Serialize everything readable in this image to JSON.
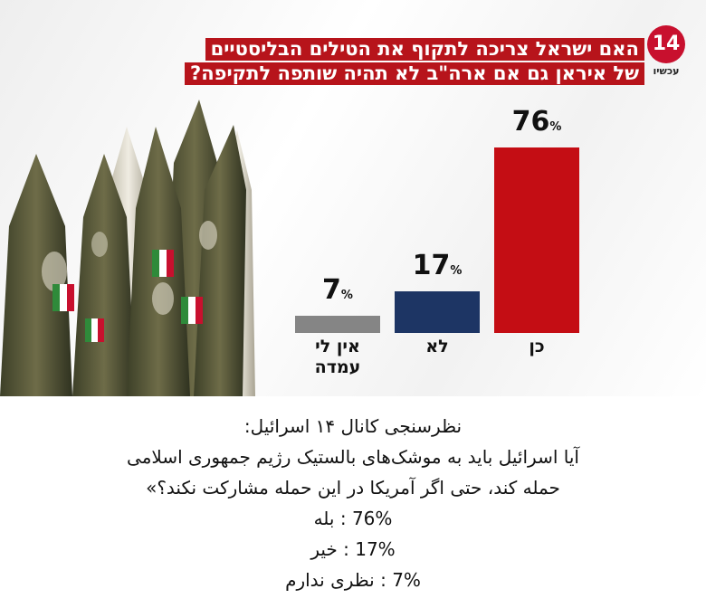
{
  "logo": {
    "number": "14",
    "caption": "עכשיו"
  },
  "chart_data": {
    "type": "bar",
    "title_lines": [
      "האם ישראל צריכה לתקוף את הטילים הבליסטיים",
      "של איראן גם אם ארה\"ב לא תהיה שותפה לתקיפה?"
    ],
    "categories": [
      "אין לי\nעמדה",
      "לא",
      "כן"
    ],
    "category_lines": [
      [
        "אין לי",
        "עמדה"
      ],
      [
        "לא"
      ],
      [
        "כן"
      ]
    ],
    "values": [
      7,
      17,
      76
    ],
    "value_labels": [
      "7",
      "17",
      "76"
    ],
    "unit": "%",
    "colors": [
      "#858585",
      "#1d3564",
      "#c40d14"
    ],
    "ylim": [
      0,
      100
    ]
  },
  "persian": {
    "line1": "نظرسنجی کانال ۱۴ اسرائیل:",
    "line2": "آیا اسرائیل باید به موشک‌های بالستیک رژیم جمهوری اسلامی",
    "line3": "حمله کند، حتی اگر آمریکا در این حمله مشارکت نکند؟»",
    "line4": "76% : بله",
    "line5": "17% : خیر",
    "line6": "7%   : نظری ندارم"
  }
}
